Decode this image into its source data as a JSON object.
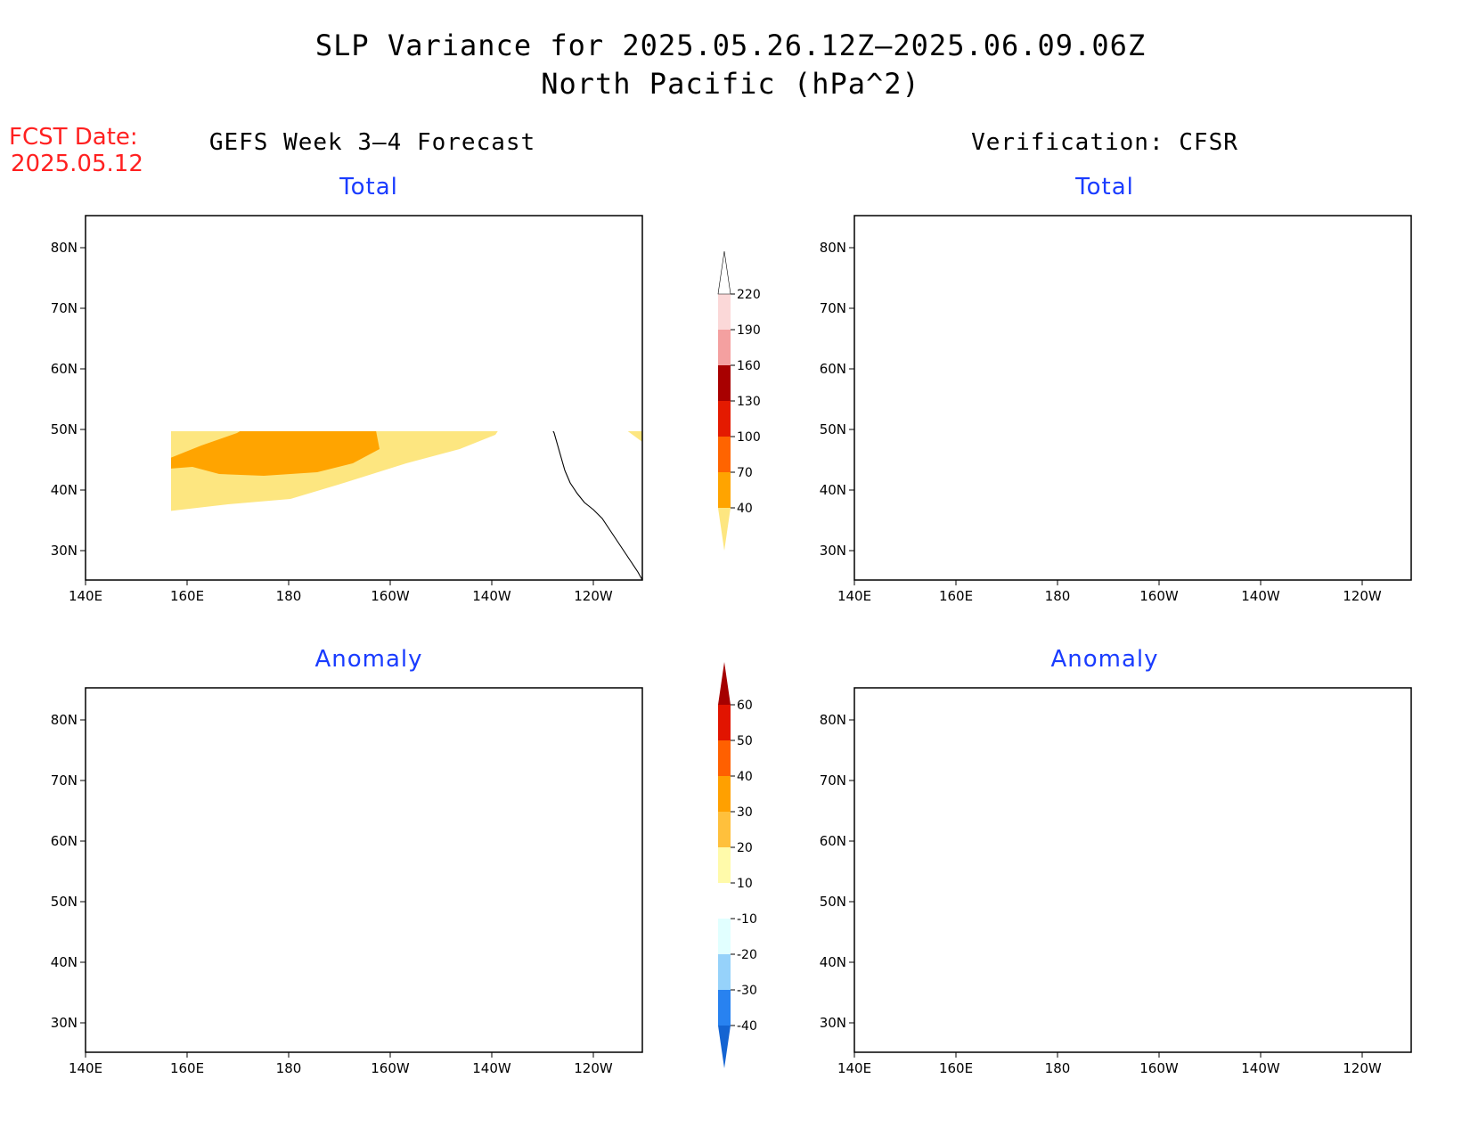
{
  "title": {
    "line1": "SLP Variance for 2025.05.26.12Z–2025.06.09.06Z",
    "line2": "North Pacific (hPa^2)"
  },
  "fcst_date": {
    "label": "FCST Date:",
    "value": "2025.05.12"
  },
  "columns": {
    "left": "GEFS Week 3–4 Forecast",
    "right": "Verification: CFSR"
  },
  "panels": [
    {
      "id": "gefs-total",
      "title": "Total"
    },
    {
      "id": "cfsr-total",
      "title": "Total"
    },
    {
      "id": "gefs-anom",
      "title": "Anomaly"
    },
    {
      "id": "cfsr-anom",
      "title": "Anomaly"
    }
  ],
  "axes": {
    "lon_ticks": [
      "140E",
      "160E",
      "180",
      "160W",
      "140W",
      "120W"
    ],
    "lat_ticks": [
      "80N",
      "70N",
      "60N",
      "50N",
      "40N",
      "30N"
    ]
  },
  "colorbars": {
    "total": {
      "levels": [
        "40",
        "70",
        "100",
        "130",
        "160",
        "190",
        "220"
      ],
      "colors": [
        "#fde680",
        "#ffa400",
        "#ff6400",
        "#e41a00",
        "#a80000",
        "#f4a0a0",
        "#fbd8d8",
        "#ffffff"
      ]
    },
    "anomaly": {
      "levels": [
        "-40",
        "-30",
        "-20",
        "-10",
        "10",
        "20",
        "30",
        "40",
        "50",
        "60"
      ],
      "colors": [
        "#1464d2",
        "#2882f0",
        "#96d2fa",
        "#e1ffff",
        "#ffffff",
        "#fffaaa",
        "#ffc03c",
        "#ffa000",
        "#ff6000",
        "#e11400",
        "#a50000"
      ]
    }
  }
}
